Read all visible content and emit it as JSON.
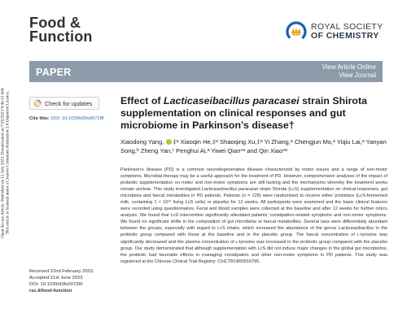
{
  "side_note": {
    "line1": "Open Access Article. Published on 12 July 2023. Downloaded on 7/20/2023 9:46:13 AM.",
    "line2": "This article is licensed under a Creative Commons Attribution 3.0 Unported Licence."
  },
  "journal": {
    "title_line1": "Food &",
    "title_line2": "Function"
  },
  "publisher": {
    "line1": "ROYAL SOCIETY",
    "line2": "OF CHEMISTRY"
  },
  "banner": {
    "label": "PAPER",
    "view_online": "View Article Online",
    "view_journal": "View Journal"
  },
  "updates_button": {
    "label": "Check for updates"
  },
  "cite": {
    "label": "Cite this:",
    "doi": "DOI: 10.1039/d3fo00728f"
  },
  "received": {
    "received": "Received 22nd February 2023,",
    "accepted": "Accepted 21st June 2023",
    "doi": "DOI: 10.1039/d3fo00728f",
    "site": "rsc.li/food-function"
  },
  "article": {
    "title_prefix": "Effect of ",
    "title_species": "Lacticaseibacillus paracasei",
    "title_rest": " strain Shirota supplementation on clinical responses and gut microbiome in Parkinson’s disease†",
    "authors": "Xiaodong Yang, ‡ᵃ Xiaoqin He,‡ᵃ Shaoqing Xu,‡ᵃ Yi Zhang,ᵃ Chengjun Mo,ᵃ Yiqiu Lai,ᵃ Yanyan Song,ᵇ Zheng Yan,ᶜ Penghui Ai,ᵃ Yiwei Qian*ᵃ and Qin Xiao*ᵃ",
    "abstract_1": "Parkinson’s disease (PD) is a common neurodegenerative disease characterized by motor issues and a range of non-motor symptoms. Microbial therapy may be a useful approach for the treatment of PD. However, comprehensive analyses of the impact of probiotic supplementation on motor and non-motor symptoms are still lacking and the mechanisms whereby the treatment works remain unclear. This study investigated ",
    "abstract_species_1": "Lacticaseibacillus paracasei",
    "abstract_2": " strain Shirota (LcS) supplementation on clinical responses, gut microbiota and faecal metabolites in PD patients. Patients (",
    "abstract_n": "n",
    "abstract_3": " = 128) were randomised to receive either probiotics (LcS-fermented milk, containing 1 × 10¹⁰ living LcS cells) or placebo for 12 weeks. All participants were examined and the basic clinical features were recorded using questionnaires. Fecal and blood samples were collected at the baseline and after 12 weeks for further omics analysis. We found that LcS intervention significantly alleviated patients’ constipation-related symptoms and non-motor symptoms. We found no significant shifts in the composition of gut microbiota or faecal metabolites. Several taxa were differentially abundant between the groups, especially with regard to LcS intake, which increased the abundance of the genus ",
    "abstract_genus": "Lacticaseibacillus",
    "abstract_4": " in the probiotic group compared with those at the baseline and in the placebo group. The faecal concentration of ʟ-tyrosine was significantly decreased and the plasma concentration of ʟ-tyrosine was increased in the probiotic group compared with the placebo group. Our study demonstrated that although supplementation with LcS did not induce major changes in the global gut microbiome, the probiotic had favorable effects in managing constipation and other non-motor symptoms in PD patients. This study was registered at the Chinese Clinical Trial Registry: ChiCTR1800016795."
  },
  "colors": {
    "banner_bg": "#8c9aa9",
    "orcid": "#a6ce39",
    "rsc_crown": "#e8a12a",
    "rsc_blue": "#1f5fa8"
  }
}
